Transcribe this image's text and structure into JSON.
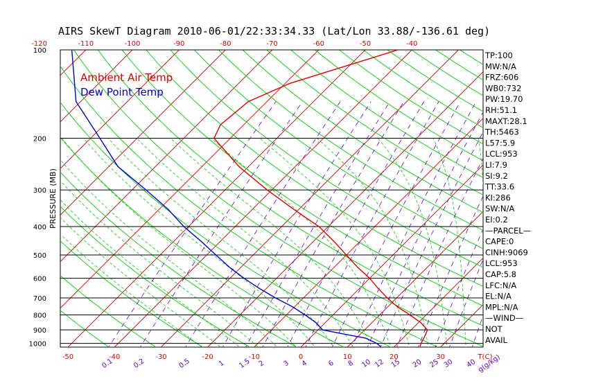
{
  "title": "AIRS SkewT Diagram 2010-06-01/22:33:34.33 (Lat/Lon 33.88/-136.61 deg)",
  "legend": [
    "Ambient Air Temp",
    "Dew Point Temp"
  ],
  "ylabel": "PRESSURE (MB)",
  "xlabel_top_ticks": [
    "-120",
    "-110",
    "-100",
    "-90",
    "-80",
    "-70",
    "-60",
    "-50",
    "-40"
  ],
  "xlabel_bottom_ticks": [
    "-50",
    "-40",
    "-30",
    "-20",
    "-10",
    "0",
    "10",
    "20",
    "30",
    "T(C)"
  ],
  "pressure_ticks": [
    "100",
    "200",
    "300",
    "400",
    "500",
    "600",
    "700",
    "800",
    "900",
    "1000"
  ],
  "mixing_ratio_labels": [
    "0.1",
    "0.2",
    "0.5",
    "1",
    "1.5",
    "2",
    "3",
    "4",
    "6",
    "8",
    "10",
    "12",
    "15",
    "20",
    "25",
    "30",
    "40",
    "g(g/kg)"
  ],
  "indices": [
    "TP:100",
    "MW:N/A",
    "FRZ:606",
    "WB0:732",
    "PW:19.70",
    "RH:51.1",
    "MAXT:28.1",
    "TH:5463",
    "L57:5.9",
    "LCL:953",
    "LI:7.9",
    "SI:9.2",
    "TT:33.6",
    "KI:286",
    "SW:N/A",
    "EI:0.2",
    "—PARCEL—",
    "CAPE:0",
    "CINH:9069",
    "LCL:953",
    "CAP:5.8",
    "LFC:N/A",
    "EL:N/A",
    "MPL:N/A",
    "—WIND—",
    "NOT",
    "AVAIL"
  ],
  "colors": {
    "temperature": "#dd0000",
    "dewpoint": "#0000cc",
    "isotherms": "#cc0000",
    "dry_adiabats": "#00cc00",
    "moist_adiabats": "#00cc00",
    "mixing_ratio": "#6600cc",
    "isobars": "#000000"
  },
  "chart_data": {
    "type": "line",
    "title": "AIRS SkewT Diagram 2010-06-01/22:33:34.33 (Lat/Lon 33.88/-136.61 deg)",
    "ylabel": "PRESSURE (MB)",
    "y_scale": "log",
    "ylim": [
      1030,
      100
    ],
    "grid": true,
    "legend_position": "top-left",
    "series": [
      {
        "name": "Ambient Air Temp",
        "pressure": [
          1025,
          1000,
          960,
          900,
          850,
          800,
          750,
          700,
          650,
          600,
          550,
          500,
          450,
          400,
          350,
          300,
          250,
          200,
          180,
          150,
          130,
          100
        ],
        "temperature": [
          25.5,
          25.0,
          24.5,
          23.5,
          20.5,
          16.5,
          12.0,
          8.0,
          4.0,
          0.0,
          -5.0,
          -10.0,
          -15.5,
          -22.0,
          -31.0,
          -41.0,
          -52.0,
          -63.5,
          -65.0,
          -64.0,
          -59.0,
          -43.0
        ]
      },
      {
        "name": "Dew Point Temp",
        "pressure": [
          1025,
          1000,
          960,
          900,
          850,
          800,
          750,
          700,
          650,
          600,
          550,
          500,
          450,
          400,
          350,
          300,
          250,
          200,
          150,
          100
        ],
        "temperature": [
          17.0,
          15.5,
          12.0,
          1.0,
          -2.0,
          -6.0,
          -10.5,
          -16.0,
          -21.5,
          -27.0,
          -32.5,
          -38.0,
          -44.0,
          -51.0,
          -58.0,
          -67.0,
          -78.0,
          -88.0,
          -101.0,
          -113.0
        ]
      }
    ]
  }
}
